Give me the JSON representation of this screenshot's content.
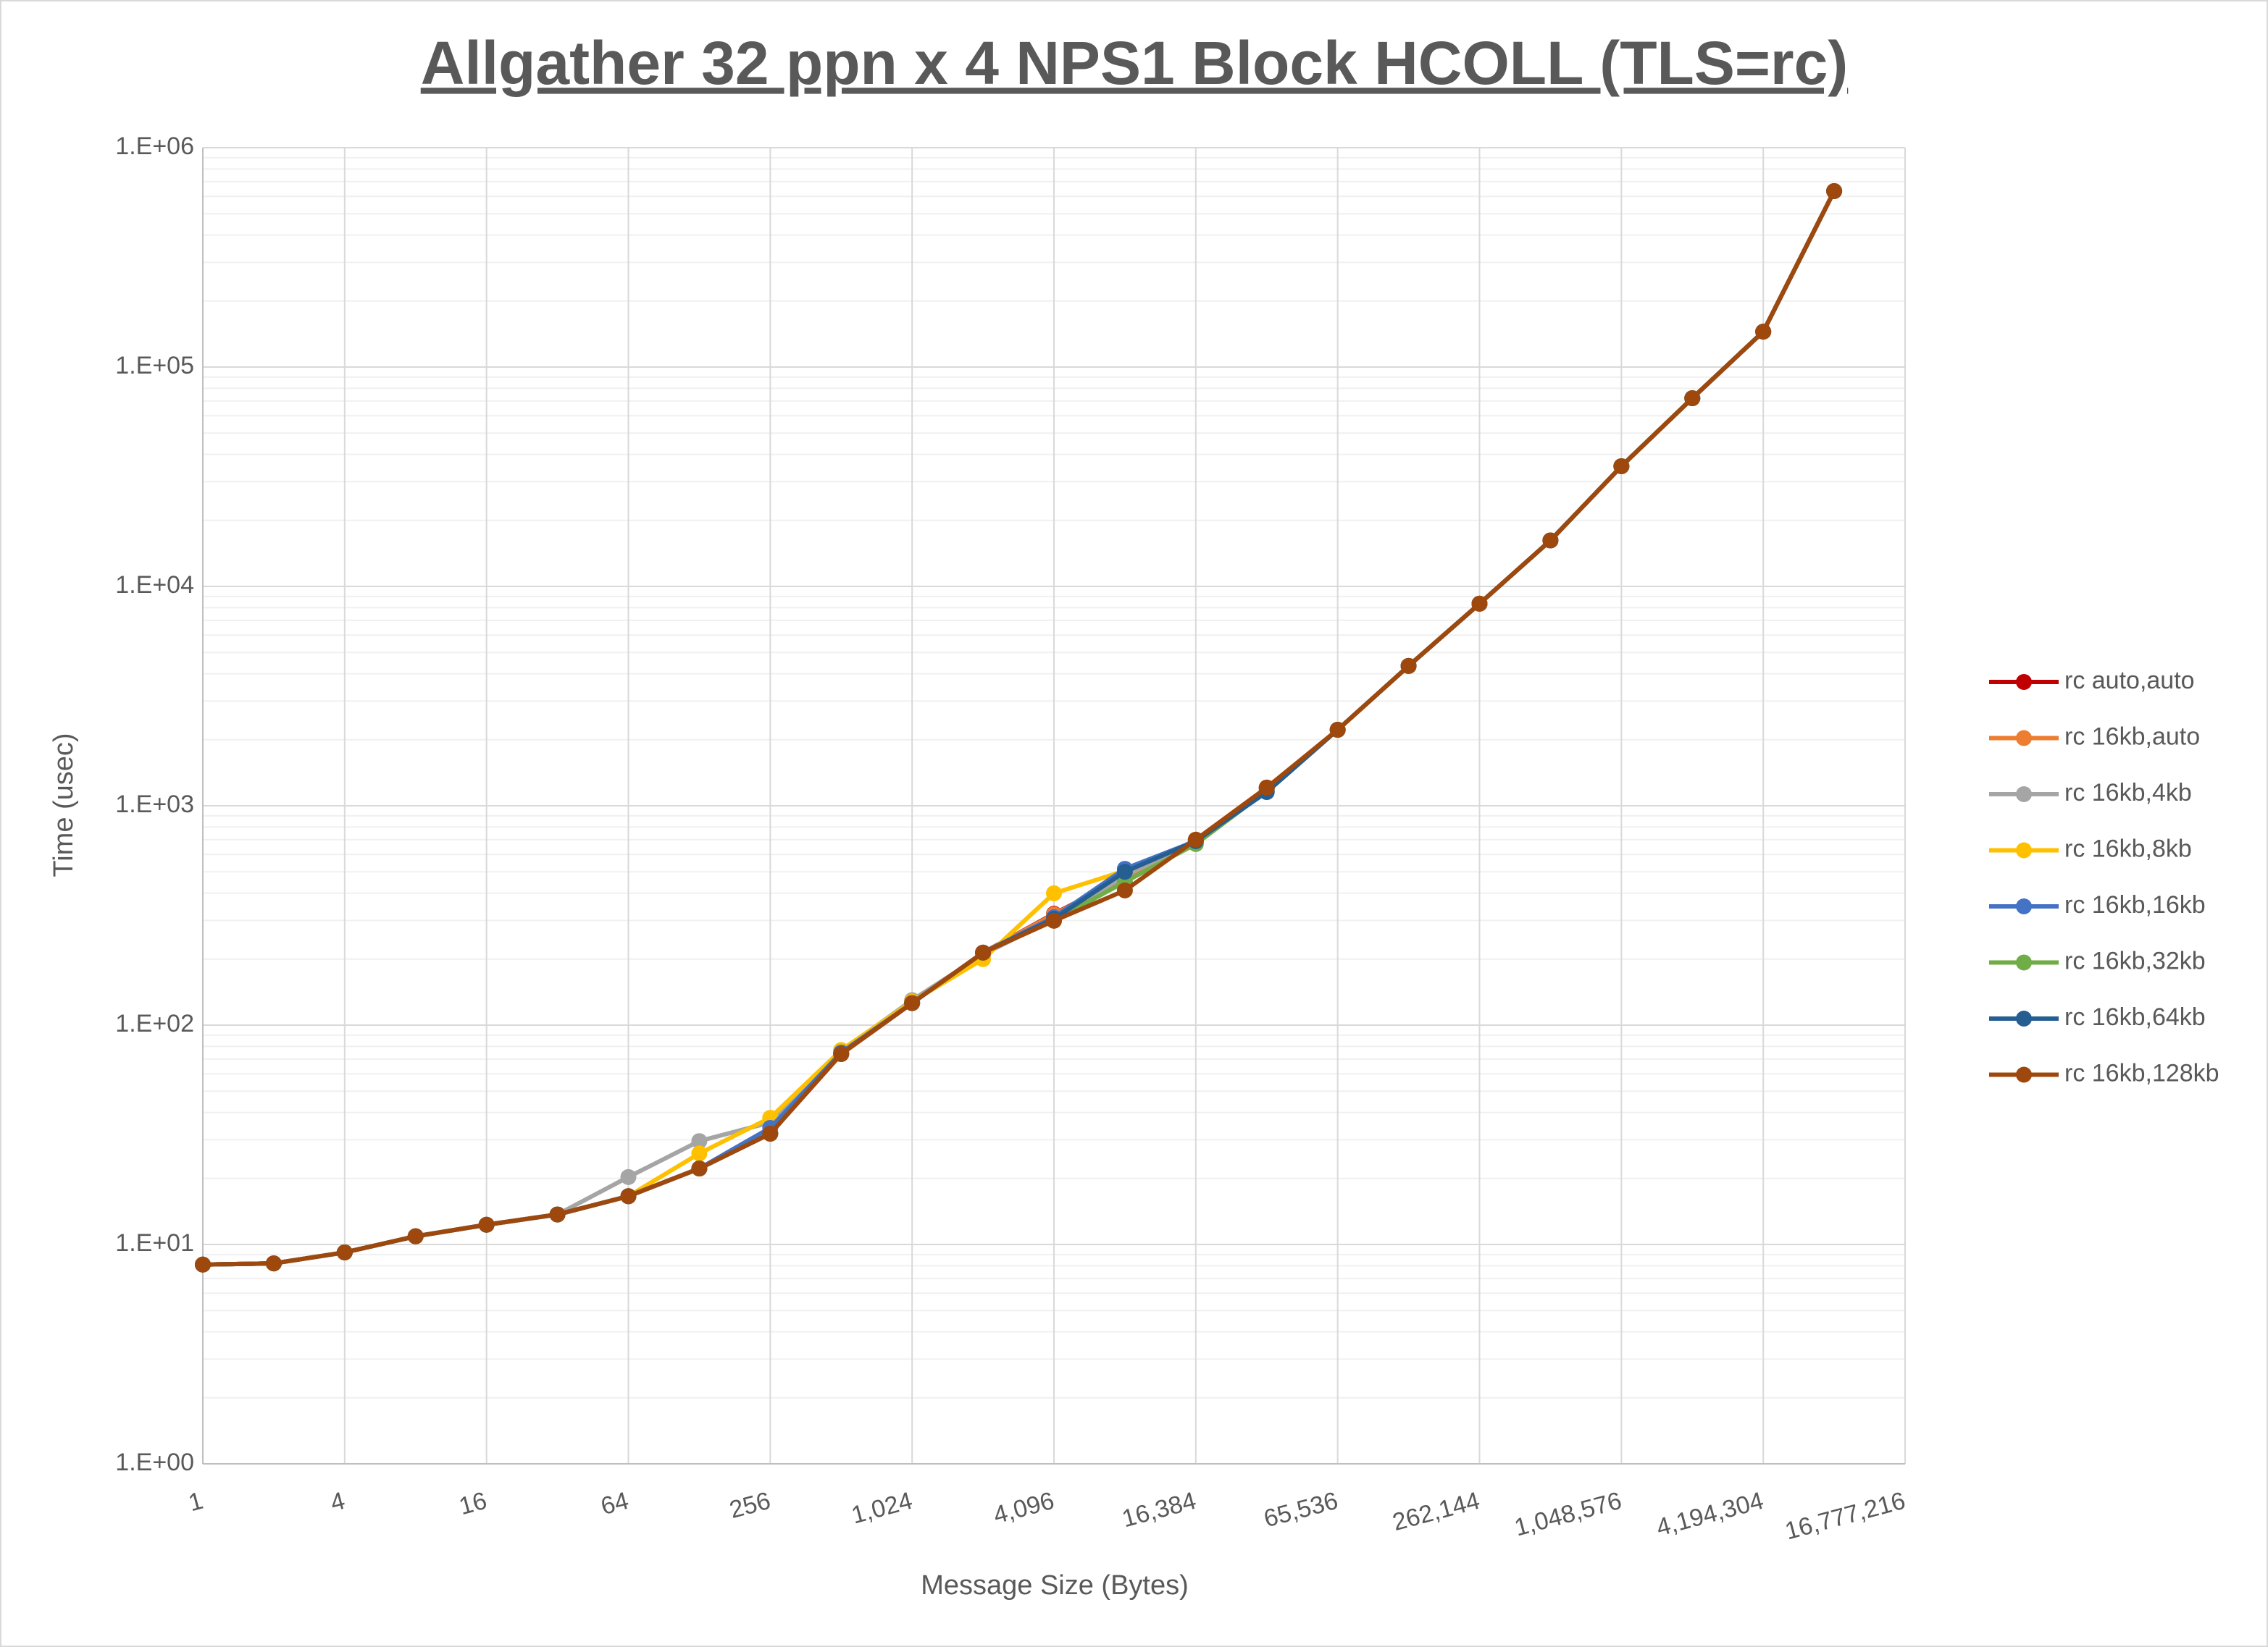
{
  "chart_data": {
    "type": "line",
    "title": "Allgather 32 ppn x 4 NPS1 Block HCOLL (TLS=rc)",
    "x_label": "Message Size (Bytes)",
    "y_label": "Time (usec)",
    "x": [
      1,
      2,
      4,
      8,
      16,
      32,
      64,
      128,
      256,
      512,
      1024,
      2048,
      4096,
      8192,
      16384,
      32768,
      65536,
      131072,
      262144,
      524288,
      1048576,
      2097152,
      4194304,
      8388608
    ],
    "x_scale": "log",
    "y_scale": "log",
    "xlim": [
      1,
      16777216
    ],
    "xticks": [
      1,
      4,
      16,
      64,
      256,
      {
        "value": 1024,
        "label": "1,024"
      },
      {
        "value": 4096,
        "label": "4,096"
      },
      {
        "value": 16384,
        "label": "16,384"
      },
      {
        "value": 65536,
        "label": "65,536"
      },
      {
        "value": 262144,
        "label": "262,144"
      },
      {
        "value": 1048576,
        "label": "1,048,576"
      },
      {
        "value": 4194304,
        "label": "4,194,304"
      },
      {
        "value": 16777216,
        "label": "16,777,216"
      }
    ],
    "ylim": [
      1,
      1000000
    ],
    "yticks": [
      {
        "value": 1,
        "label": "1.E+00"
      },
      {
        "value": 10,
        "label": "1.E+01"
      },
      {
        "value": 100,
        "label": "1.E+02"
      },
      {
        "value": 1000,
        "label": "1.E+03"
      },
      {
        "value": 10000,
        "label": "1.E+04"
      },
      {
        "value": 100000,
        "label": "1.E+05"
      },
      {
        "value": 1000000,
        "label": "1.E+06"
      }
    ],
    "grid": true,
    "minor_grid": true,
    "legend": "right",
    "series": [
      {
        "name": "rc auto,auto",
        "color": "#c00000",
        "values": [
          8.1,
          8.2,
          9.2,
          10.9,
          12.3,
          13.7,
          16.6,
          22.2,
          32,
          73.8,
          126,
          214,
          322,
          470,
          700,
          1210,
          2220,
          4340,
          8340,
          16200,
          35300,
          72100,
          145000,
          634000
        ]
      },
      {
        "name": "rc 16kb,auto",
        "color": "#ed7d31",
        "values": [
          8.1,
          8.2,
          9.2,
          10.9,
          12.3,
          13.7,
          16.6,
          22.2,
          32,
          73.8,
          126,
          214,
          320,
          470,
          700,
          1210,
          2220,
          4340,
          8340,
          16200,
          35300,
          72100,
          145000,
          634000
        ]
      },
      {
        "name": "rc 16kb,4kb",
        "color": "#a5a5a5",
        "values": [
          8.1,
          8.2,
          9.2,
          10.9,
          12.3,
          13.7,
          20.3,
          29.6,
          36,
          76,
          130,
          210,
          305,
          480,
          690,
          1200,
          2220,
          4340,
          8340,
          16200,
          35300,
          72100,
          145000,
          634000
        ]
      },
      {
        "name": "rc 16kb,8kb",
        "color": "#ffc000",
        "values": [
          8.1,
          8.2,
          9.2,
          10.9,
          12.3,
          13.7,
          16.6,
          26,
          37.8,
          77,
          128,
          200,
          399,
          505,
          690,
          1200,
          2220,
          4340,
          8340,
          16200,
          35300,
          72100,
          145000,
          634000
        ]
      },
      {
        "name": "rc 16kb,16kb",
        "color": "#4472c4",
        "values": [
          8.1,
          8.2,
          9.2,
          10.9,
          12.3,
          13.7,
          16.6,
          22.2,
          34,
          75,
          126,
          214,
          310,
          516,
          690,
          1200,
          2220,
          4340,
          8340,
          16200,
          35300,
          72100,
          145000,
          634000
        ]
      },
      {
        "name": "rc 16kb,32kb",
        "color": "#70ad47",
        "values": [
          8.1,
          8.2,
          9.2,
          10.9,
          12.3,
          13.7,
          16.6,
          22.2,
          32,
          74,
          126,
          214,
          300,
          450,
          669,
          1170,
          2220,
          4340,
          8340,
          16200,
          35300,
          72100,
          145000,
          634000
        ]
      },
      {
        "name": "rc 16kb,64kb",
        "color": "#255e91",
        "values": [
          8.1,
          8.2,
          9.2,
          10.9,
          12.3,
          13.7,
          16.6,
          22.2,
          32,
          74,
          126,
          214,
          305,
          500,
          690,
          1155,
          2220,
          4340,
          8340,
          16200,
          35300,
          72100,
          145000,
          634000
        ]
      },
      {
        "name": "rc 16kb,128kb",
        "color": "#9e480e",
        "values": [
          8.1,
          8.2,
          9.2,
          10.9,
          12.3,
          13.7,
          16.6,
          22.2,
          32,
          73.8,
          126,
          214,
          299,
          411,
          700,
          1210,
          2220,
          4340,
          8340,
          16200,
          35300,
          72100,
          145000,
          634000
        ]
      }
    ]
  }
}
